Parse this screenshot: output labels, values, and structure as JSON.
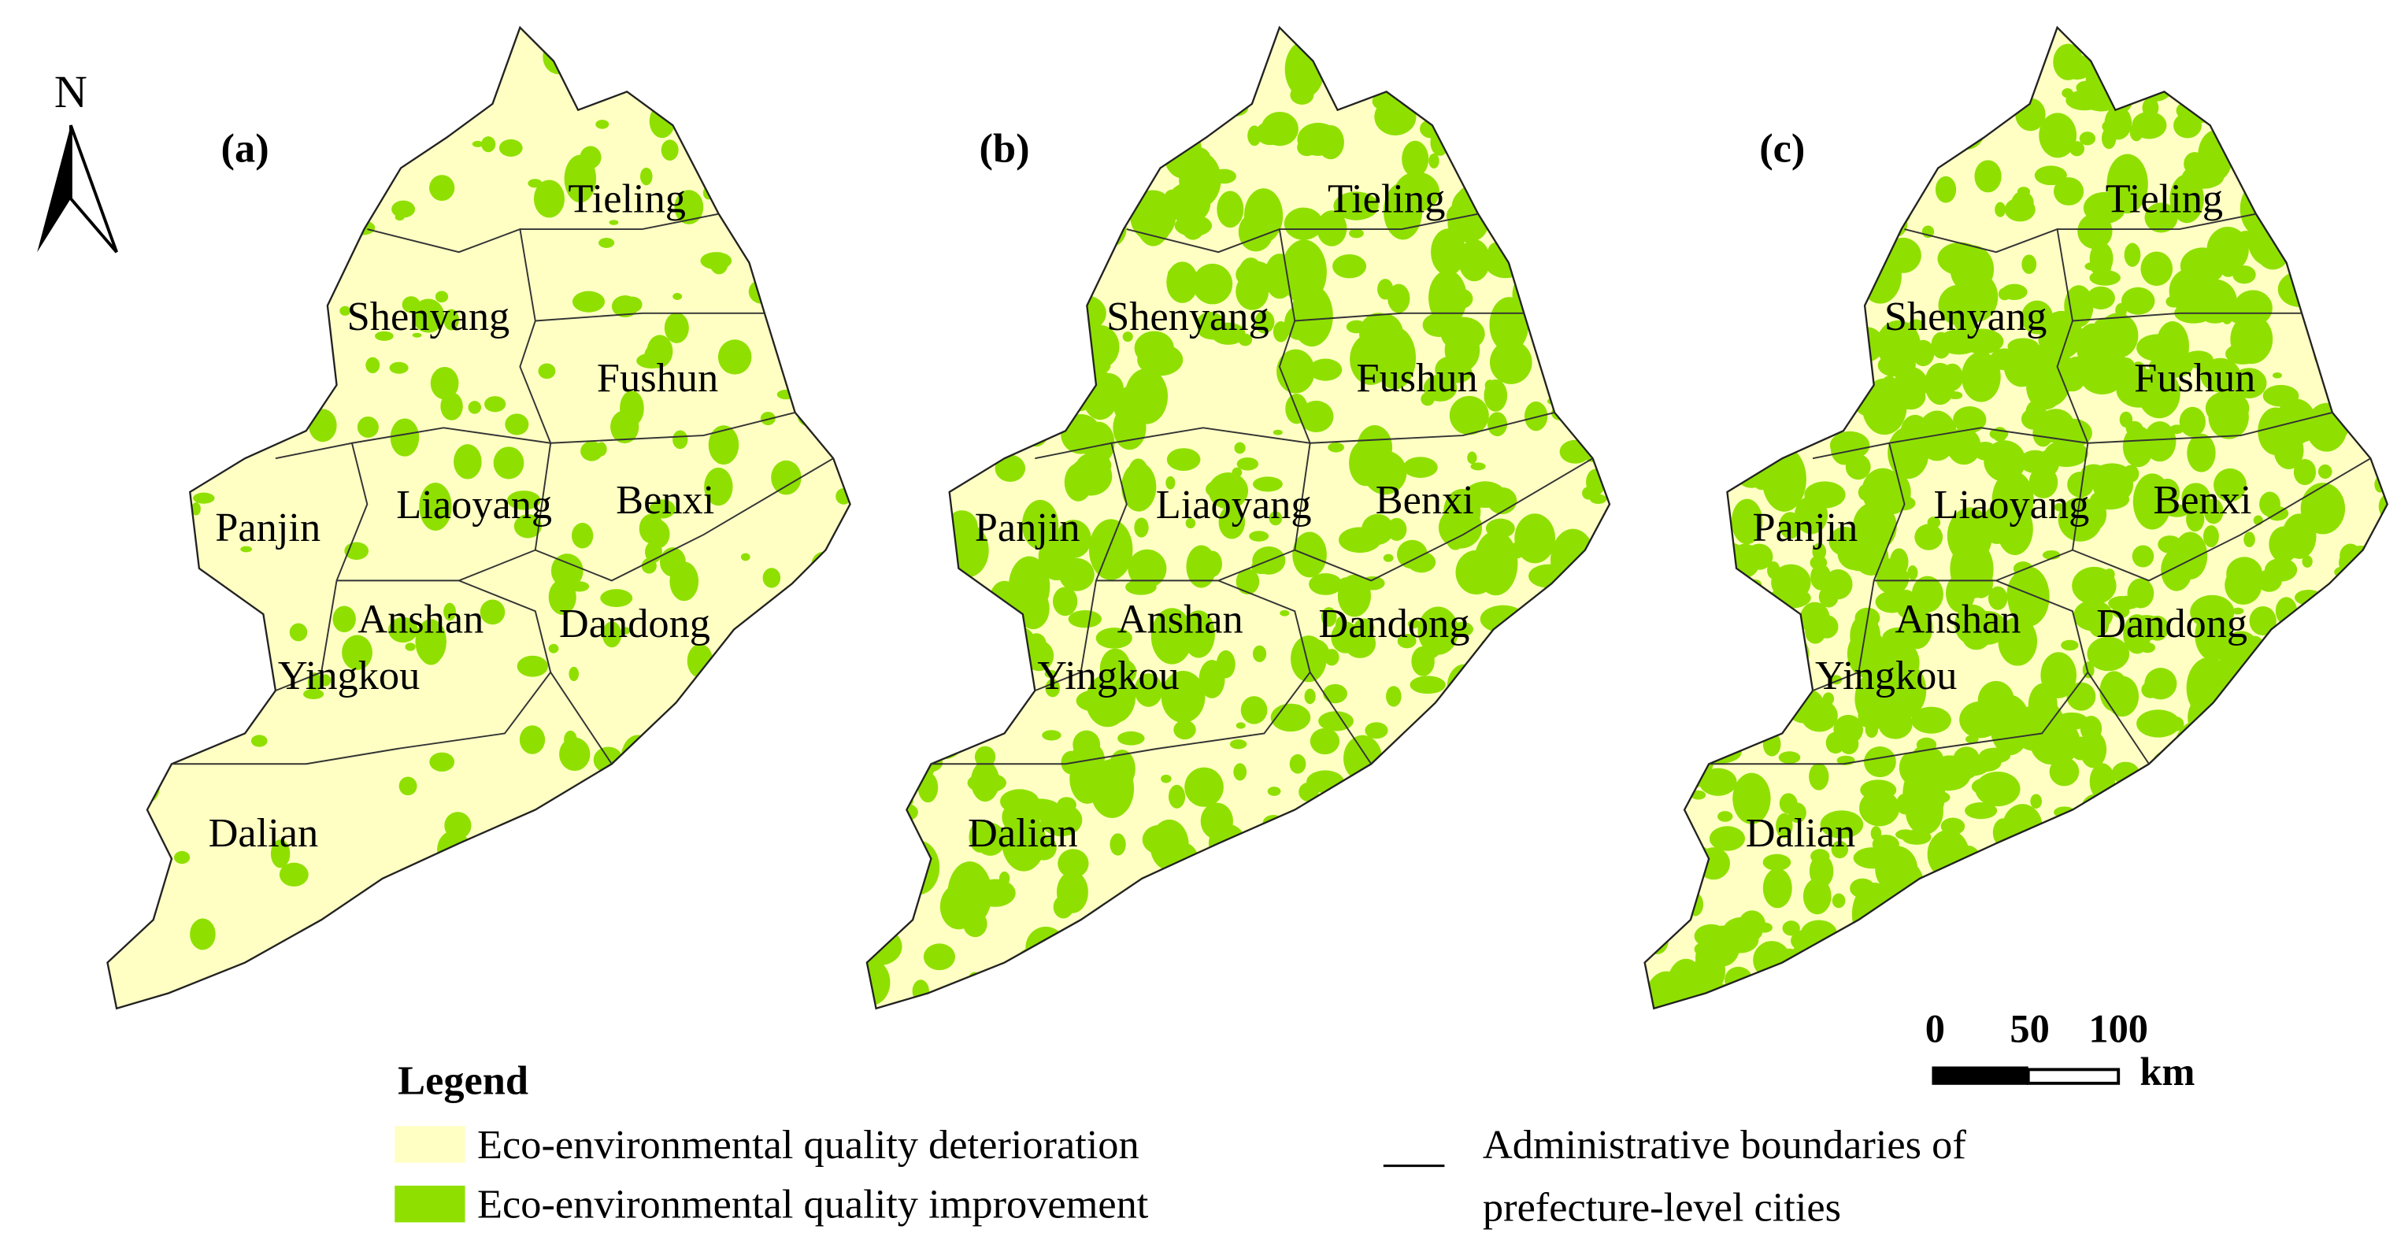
{
  "north": "N",
  "panels": [
    {
      "label": "(a)",
      "cities": [
        "Tieling",
        "Shenyang",
        "Fushun",
        "Liaoyang",
        "Benxi",
        "Panjin",
        "Anshan",
        "Dandong",
        "Yingkou",
        "Dalian"
      ]
    },
    {
      "label": "(b)",
      "cities": [
        "Tieling",
        "Shenyang",
        "Fushun",
        "Liaoyang",
        "Benxi",
        "Panjin",
        "Anshan",
        "Dandong",
        "Yingkou",
        "Dalian"
      ]
    },
    {
      "label": "(c)",
      "cities": [
        "Tieling",
        "Shenyang",
        "Fushun",
        "Liaoyang",
        "Benxi",
        "Panjin",
        "Anshan",
        "Dandong",
        "Yingkou",
        "Dalian"
      ]
    }
  ],
  "legend": {
    "title": "Legend",
    "items": [
      "Eco-environmental quality deterioration",
      "Eco-environmental quality improvement"
    ],
    "boundary": [
      "Administrative boundaries of",
      "prefecture-level cities"
    ]
  },
  "scale_bar": {
    "ticks": [
      "0",
      "50",
      "100"
    ],
    "unit": "km"
  }
}
